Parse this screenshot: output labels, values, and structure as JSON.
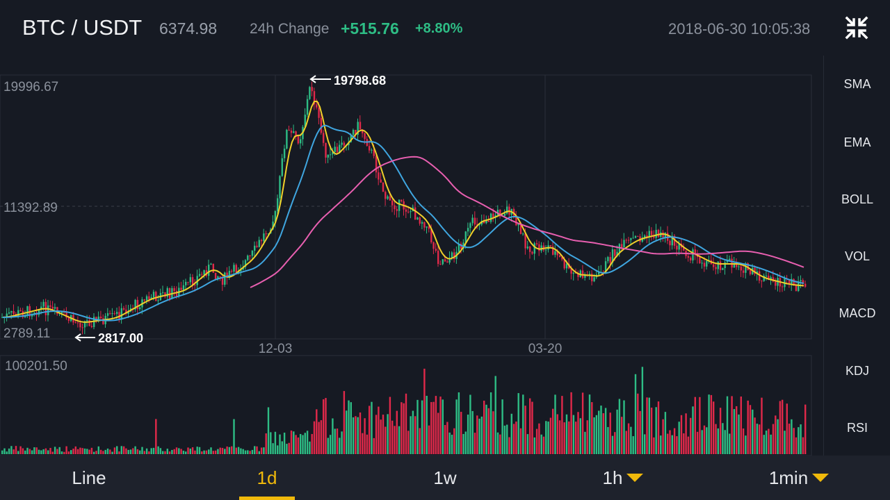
{
  "header": {
    "pair": "BTC / USDT",
    "last_price": "6374.98",
    "change_label": "24h Change",
    "change_abs": "+515.76",
    "change_pct": "+8.80%",
    "datetime": "2018-06-30 10:05:38",
    "collapse_icon": "collapse-arrows-icon"
  },
  "chart": {
    "y_labels": {
      "top": "19996.67",
      "mid": "11392.89",
      "bottom": "2789.11"
    },
    "x_labels": [
      "12-03",
      "03-20"
    ],
    "high_marker": "19798.68",
    "low_marker": "2817.00",
    "volume_label": "100201.50",
    "colors": {
      "up": "#2ebd85",
      "down": "#e0294a",
      "ma_fast": "#f0d02a",
      "ma_mid": "#3fa6e0",
      "ma_slow": "#e85fb0"
    }
  },
  "sidebar": {
    "items": [
      {
        "label": "SMA",
        "active": true
      },
      {
        "label": "EMA",
        "active": false
      },
      {
        "label": "BOLL",
        "active": false
      },
      {
        "label": "VOL",
        "active": true
      },
      {
        "label": "MACD",
        "active": false
      },
      {
        "label": "KDJ",
        "active": false
      },
      {
        "label": "RSI",
        "active": false
      }
    ]
  },
  "timeframes": {
    "line": "Line",
    "d1": "1d",
    "w1": "1w",
    "h1": "1h",
    "min1": "1min",
    "active": "1d"
  }
}
